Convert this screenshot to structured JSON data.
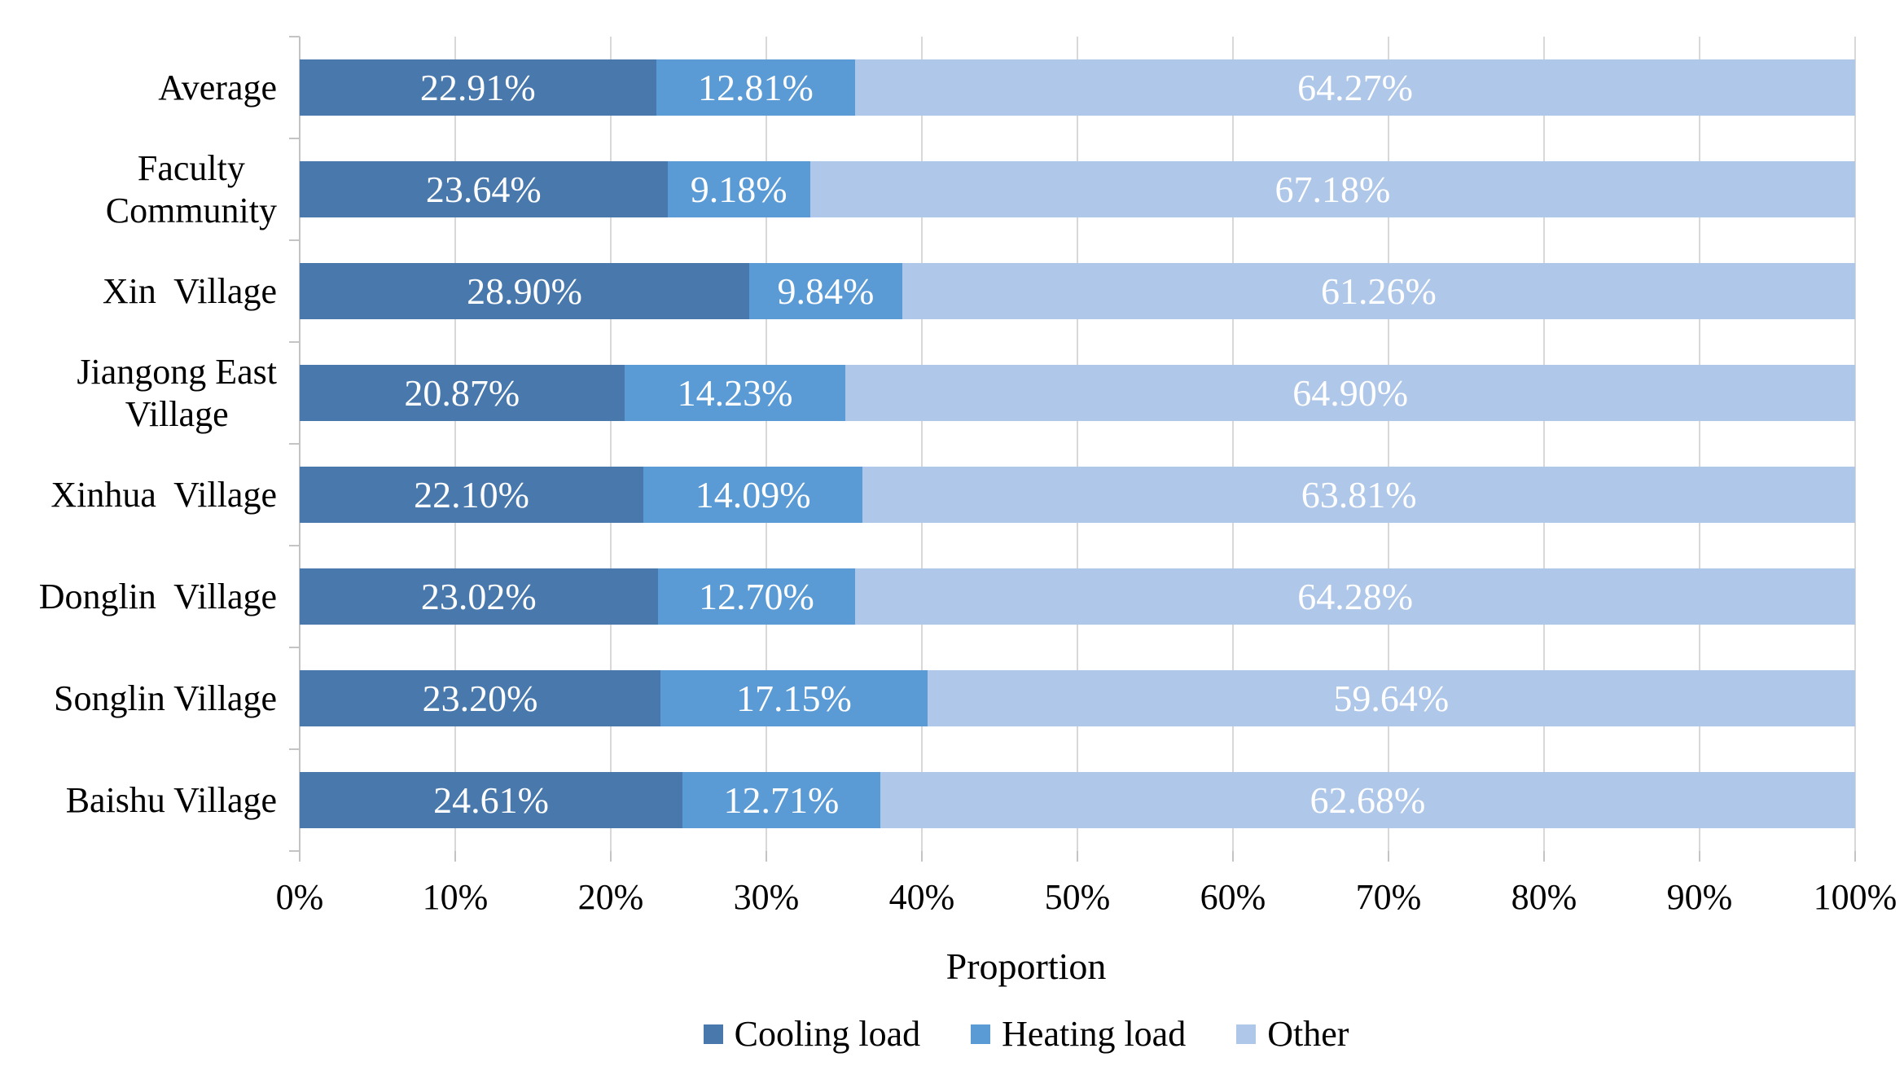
{
  "chart_data": {
    "type": "bar",
    "orientation": "horizontal",
    "stacked": true,
    "title": "",
    "xlabel": "Proportion",
    "ylabel": "",
    "xlim": [
      0,
      100
    ],
    "x_tick_labels": [
      "0%",
      "10%",
      "20%",
      "30%",
      "40%",
      "50%",
      "60%",
      "70%",
      "80%",
      "90%",
      "100%"
    ],
    "grid": true,
    "legend_position": "bottom",
    "categories": [
      "Average",
      "Faculty\nCommunity",
      "Xin  Village",
      "Jiangong East\nVillage",
      "Xinhua  Village",
      "Donglin  Village",
      "Songlin Village",
      "Baishu Village"
    ],
    "series": [
      {
        "name": "Cooling load",
        "color": "#4878AC",
        "values": [
          22.91,
          23.64,
          28.9,
          20.87,
          22.1,
          23.02,
          23.2,
          24.61
        ]
      },
      {
        "name": "Heating load",
        "color": "#5B9BD5",
        "values": [
          12.81,
          9.18,
          9.84,
          14.23,
          14.09,
          12.7,
          17.15,
          12.71
        ]
      },
      {
        "name": "Other",
        "color": "#AFC7E8",
        "values": [
          64.27,
          67.18,
          61.26,
          64.9,
          63.81,
          64.28,
          59.64,
          62.68
        ]
      }
    ],
    "value_label_format": "0.00%",
    "value_label_color": "#FFFFFF",
    "gridline_color": "#D8D8D8",
    "axis_color": "#C4C4C4"
  }
}
